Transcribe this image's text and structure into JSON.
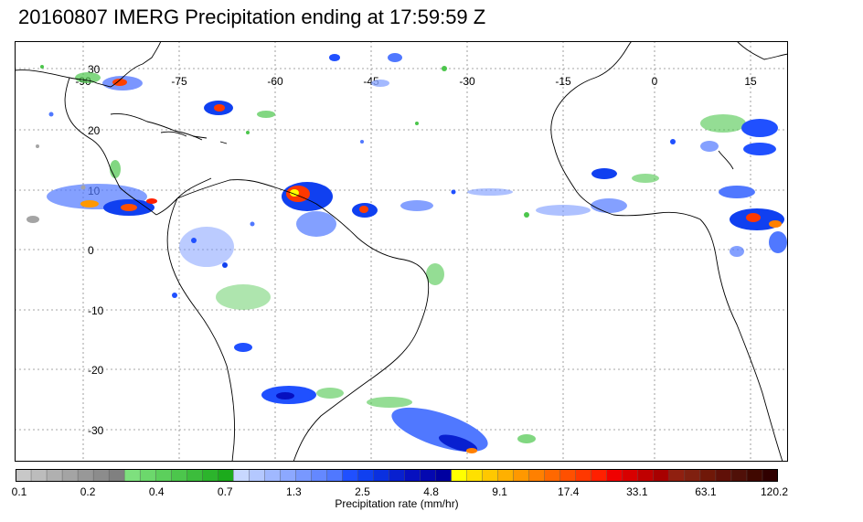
{
  "title": "20160807 IMERG Precipitation ending at 17:59:59 Z",
  "map": {
    "lon_labels": [
      "-90",
      "-75",
      "-60",
      "-45",
      "-30",
      "-15",
      "0",
      "15"
    ],
    "lat_labels": [
      "30",
      "20",
      "10",
      "0",
      "-10",
      "-20",
      "-30"
    ],
    "colors": {
      "background": "#ffffff",
      "coastline": "#000000",
      "gridline": "#888888",
      "frame": "#000000"
    }
  },
  "colorbar": {
    "colors": [
      "#c8c8c8",
      "#bcbcbc",
      "#b0b0b0",
      "#a4a4a4",
      "#989898",
      "#8c8c8c",
      "#808080",
      "#7ee07e",
      "#6cd86c",
      "#5ccf5c",
      "#4cc64c",
      "#3cbd3c",
      "#2cb42c",
      "#1cab1c",
      "#c8d8ff",
      "#b4c8ff",
      "#a0b8ff",
      "#8ca8ff",
      "#7898ff",
      "#6488ff",
      "#5078ff",
      "#2050ff",
      "#1040f0",
      "#0a30e0",
      "#0820d0",
      "#0610c0",
      "#0408b0",
      "#0000a0",
      "#ffff00",
      "#ffe000",
      "#ffc800",
      "#ffb000",
      "#ff9800",
      "#ff8000",
      "#ff6800",
      "#ff5000",
      "#ff3800",
      "#ff2000",
      "#f00000",
      "#d80000",
      "#c00000",
      "#a80000",
      "#902010",
      "#802010",
      "#701808",
      "#601008",
      "#501008",
      "#400800",
      "#300000"
    ],
    "tick_labels": [
      "0.1",
      "0.2",
      "0.4",
      "0.7",
      "1.3",
      "2.5",
      "4.8",
      "9.1",
      "17.4",
      "33.1",
      "63.1",
      "120.2"
    ],
    "label": "Precipitation rate (mm/hr)"
  }
}
